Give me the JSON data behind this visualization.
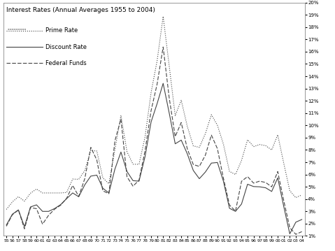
{
  "title": "Interest Rates (Annual Averages 1955 to 2004)",
  "years": [
    1955,
    1956,
    1957,
    1958,
    1959,
    1960,
    1961,
    1962,
    1963,
    1964,
    1965,
    1966,
    1967,
    1968,
    1969,
    1970,
    1971,
    1972,
    1973,
    1974,
    1975,
    1976,
    1977,
    1978,
    1979,
    1980,
    1981,
    1982,
    1983,
    1984,
    1985,
    1986,
    1987,
    1988,
    1989,
    1990,
    1991,
    1992,
    1993,
    1994,
    1995,
    1996,
    1997,
    1998,
    1999,
    2000,
    2001,
    2002,
    2003,
    2004
  ],
  "prime_rate": [
    3.16,
    3.77,
    4.2,
    3.83,
    4.48,
    4.82,
    4.5,
    4.5,
    4.5,
    4.5,
    4.54,
    5.63,
    5.61,
    6.31,
    7.96,
    7.91,
    5.72,
    5.25,
    8.03,
    10.81,
    7.86,
    6.84,
    6.83,
    9.06,
    12.67,
    15.26,
    18.87,
    14.86,
    10.79,
    12.04,
    9.93,
    8.33,
    8.21,
    9.32,
    10.87,
    10.01,
    8.46,
    6.25,
    6.0,
    7.15,
    8.83,
    8.27,
    8.44,
    8.35,
    8.0,
    9.23,
    6.92,
    4.68,
    4.12,
    4.34
  ],
  "discount_rate": [
    1.89,
    2.77,
    3.12,
    1.75,
    3.36,
    3.53,
    3.0,
    3.0,
    3.23,
    3.55,
    4.04,
    4.5,
    4.19,
    5.16,
    5.87,
    5.95,
    4.88,
    4.5,
    6.44,
    7.83,
    6.25,
    5.5,
    5.46,
    7.46,
    10.28,
    11.77,
    13.42,
    11.02,
    8.5,
    8.8,
    7.69,
    6.33,
    5.66,
    6.2,
    6.93,
    6.98,
    5.45,
    3.25,
    3.0,
    3.6,
    5.21,
    5.02,
    5.0,
    4.92,
    4.62,
    5.73,
    3.4,
    1.17,
    2.12,
    2.34
  ],
  "federal_funds": [
    1.79,
    2.73,
    3.11,
    1.57,
    3.31,
    3.22,
    1.96,
    2.68,
    3.18,
    3.5,
    4.07,
    5.11,
    4.22,
    5.66,
    8.21,
    7.18,
    4.67,
    4.44,
    8.74,
    10.51,
    5.82,
    5.05,
    5.54,
    7.94,
    11.2,
    13.36,
    16.38,
    12.26,
    9.09,
    10.23,
    8.1,
    6.81,
    6.66,
    7.57,
    9.21,
    8.1,
    5.69,
    3.52,
    3.02,
    5.45,
    5.83,
    5.3,
    5.46,
    5.35,
    5.0,
    6.24,
    3.88,
    1.67,
    1.13,
    1.35
  ],
  "ylim": [
    1,
    20
  ],
  "yticks": [
    1,
    2,
    3,
    4,
    5,
    6,
    7,
    8,
    9,
    10,
    11,
    12,
    13,
    14,
    15,
    16,
    17,
    18,
    19,
    20
  ],
  "background_color": "#ffffff",
  "line_color": "#444444",
  "linewidth": 0.8,
  "prime_dots": [
    1,
    2
  ],
  "federal_dashes": [
    5,
    2
  ],
  "legend_labels": [
    "Prime Rate",
    "Discount Rate",
    "Federal Funds"
  ]
}
